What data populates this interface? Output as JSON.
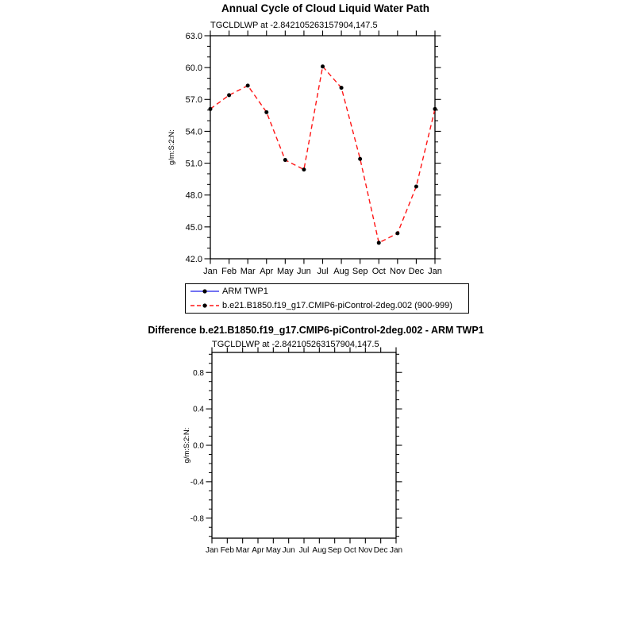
{
  "page": {
    "background_color": "#ffffff",
    "text_color": "#000000"
  },
  "chart_data": [
    {
      "type": "line",
      "panel": "top",
      "title": "Annual Cycle of Cloud Liquid Water Path",
      "subtitle": "TGCLDLWP at -2.842105263157904,147.5",
      "xlabel": "",
      "ylabel": "g/m:S:2:N:",
      "categories": [
        "Jan",
        "Feb",
        "Mar",
        "Apr",
        "May",
        "Jun",
        "Jul",
        "Aug",
        "Sep",
        "Oct",
        "Nov",
        "Dec",
        "Jan"
      ],
      "ylim": [
        42.0,
        63.0
      ],
      "yticks_major": [
        42.0,
        45.0,
        48.0,
        51.0,
        54.0,
        57.0,
        60.0,
        63.0
      ],
      "ytick_minor_step": 1.0,
      "grid": false,
      "legend_position": "below-plot",
      "series": [
        {
          "name": "ARM TWP1",
          "color": "#4444ee",
          "line_style": "solid",
          "marker": "filled-circle",
          "marker_color": "#000000",
          "values": []
        },
        {
          "name": "b.e21.B1850.f19_g17.CMIP6-piControl-2deg.002 (900-999)",
          "color": "#ff1515",
          "line_style": "dashed",
          "marker": "filled-circle",
          "marker_color": "#000000",
          "values": [
            56.1,
            57.4,
            58.3,
            55.8,
            51.3,
            50.4,
            60.1,
            58.1,
            51.4,
            43.5,
            44.4,
            48.8,
            56.1
          ]
        }
      ]
    },
    {
      "type": "line",
      "panel": "bottom",
      "title": "Difference b.e21.B1850.f19_g17.CMIP6-piControl-2deg.002 - ARM TWP1",
      "subtitle": "TGCLDLWP at -2.842105263157904,147.5",
      "xlabel": "",
      "ylabel": "g/m:S:2:N:",
      "categories": [
        "Jan",
        "Feb",
        "Mar",
        "Apr",
        "May",
        "Jun",
        "Jul",
        "Aug",
        "Sep",
        "Oct",
        "Nov",
        "Dec",
        "Jan"
      ],
      "ylim": [
        -1.02,
        1.02
      ],
      "yticks_major": [
        -0.8,
        -0.4,
        0.0,
        0.4,
        0.8
      ],
      "ytick_minor_step": 0.1,
      "grid": false,
      "legend_position": "none",
      "series": []
    }
  ]
}
